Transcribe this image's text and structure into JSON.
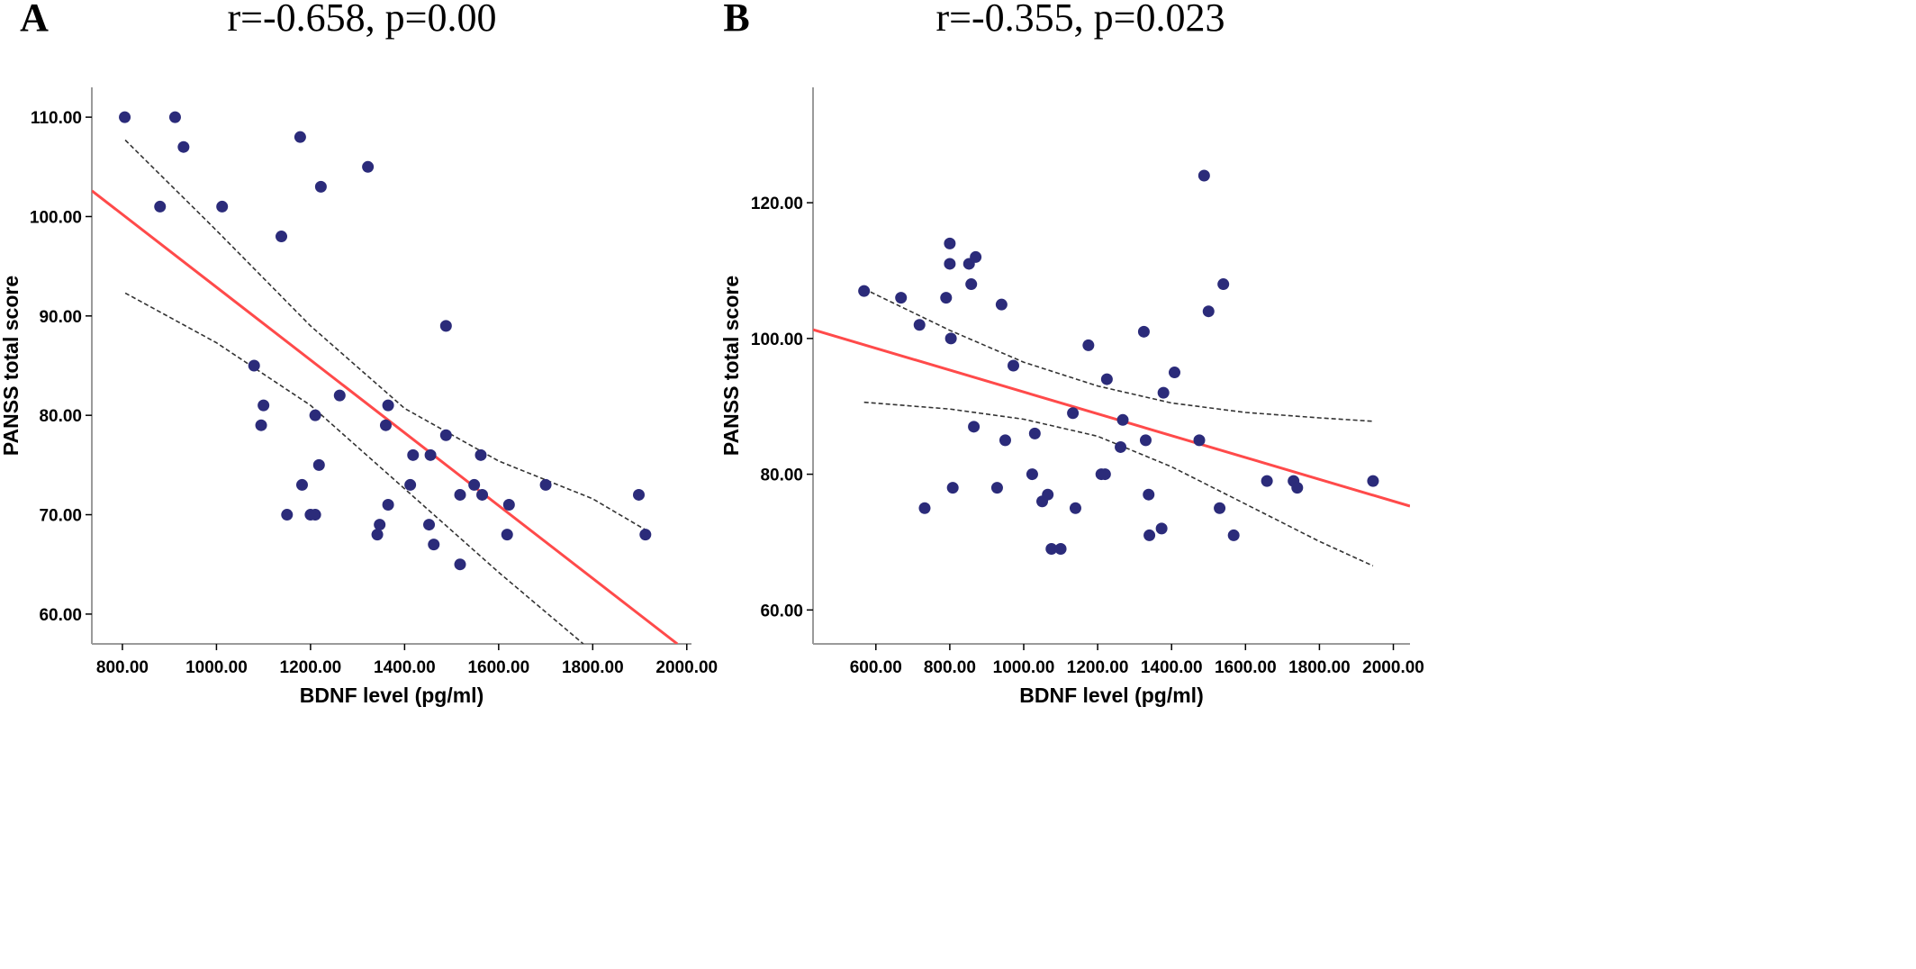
{
  "chart_data": [
    {
      "type": "scatter",
      "panel_label": "A",
      "title": "r=-0.658, p=0.00",
      "xlabel": "BDNF level (pg/ml)",
      "ylabel": "PANSS total score",
      "xlim": [
        735,
        2010
      ],
      "ylim": [
        57,
        113
      ],
      "x_ticks": [
        800,
        1000,
        1200,
        1400,
        1600,
        1800,
        2000
      ],
      "x_tick_labels": [
        "800.00",
        "1000.00",
        "1200.00",
        "1400.00",
        "1600.00",
        "1800.00",
        "2000.00"
      ],
      "y_ticks": [
        60,
        70,
        80,
        90,
        100,
        110
      ],
      "y_tick_labels": [
        "60.00",
        "70.00",
        "80.00",
        "90.00",
        "100.00",
        "110.00"
      ],
      "points": [
        [
          805,
          110
        ],
        [
          912,
          110
        ],
        [
          930,
          107
        ],
        [
          880,
          101
        ],
        [
          1012,
          101
        ],
        [
          1178,
          108
        ],
        [
          1222,
          103
        ],
        [
          1322,
          105
        ],
        [
          1138,
          98
        ],
        [
          1488,
          89
        ],
        [
          1080,
          85
        ],
        [
          1100,
          81
        ],
        [
          1095,
          79
        ],
        [
          1262,
          82
        ],
        [
          1210,
          80
        ],
        [
          1365,
          81
        ],
        [
          1360,
          79
        ],
        [
          1218,
          75
        ],
        [
          1182,
          73
        ],
        [
          1150,
          70
        ],
        [
          1200,
          70
        ],
        [
          1210,
          70
        ],
        [
          1418,
          76
        ],
        [
          1455,
          76
        ],
        [
          1488,
          78
        ],
        [
          1412,
          73
        ],
        [
          1365,
          71
        ],
        [
          1347,
          69
        ],
        [
          1342,
          68
        ],
        [
          1452,
          69
        ],
        [
          1462,
          67
        ],
        [
          1518,
          65
        ],
        [
          1518,
          72
        ],
        [
          1548,
          73
        ],
        [
          1565,
          72
        ],
        [
          1562,
          76
        ],
        [
          1622,
          71
        ],
        [
          1618,
          68
        ],
        [
          1700,
          73
        ],
        [
          1898,
          72
        ],
        [
          1912,
          68
        ]
      ],
      "fit": {
        "x": [
          735,
          1980
        ],
        "y": [
          102.6,
          57
        ]
      },
      "ci_upper": {
        "x": [
          806,
          1000,
          1200,
          1400,
          1600,
          1800,
          1915
        ],
        "y": [
          107.7,
          98.6,
          89.0,
          80.7,
          75.4,
          71.6,
          68.4
        ]
      },
      "ci_lower": {
        "x": [
          806,
          1000,
          1200,
          1400,
          1600,
          1780
        ],
        "y": [
          92.3,
          87.3,
          81.0,
          72.6,
          64.2,
          57
        ]
      }
    },
    {
      "type": "scatter",
      "panel_label": "B",
      "title": "r=-0.355, p=0.023",
      "xlabel": "BDNF level (pg/ml)",
      "ylabel": "PANSS total score",
      "xlim": [
        430,
        2045
      ],
      "ylim": [
        55,
        137
      ],
      "x_ticks": [
        600,
        800,
        1000,
        1200,
        1400,
        1600,
        1800,
        2000
      ],
      "x_tick_labels": [
        "600.00",
        "800.00",
        "1000.00",
        "1200.00",
        "1400.00",
        "1600.00",
        "1800.00",
        "2000.00"
      ],
      "y_ticks": [
        60,
        80,
        100,
        120
      ],
      "y_tick_labels": [
        "60.00",
        "80.00",
        "100.00",
        "120.00"
      ],
      "points": [
        [
          568,
          107
        ],
        [
          668,
          106
        ],
        [
          718,
          102
        ],
        [
          790,
          106
        ],
        [
          800,
          114
        ],
        [
          800,
          111
        ],
        [
          803,
          100
        ],
        [
          808,
          78
        ],
        [
          852,
          111
        ],
        [
          858,
          108
        ],
        [
          870,
          112
        ],
        [
          865,
          87
        ],
        [
          732,
          75
        ],
        [
          928,
          78
        ],
        [
          940,
          105
        ],
        [
          950,
          85
        ],
        [
          972,
          96
        ],
        [
          1023,
          80
        ],
        [
          1030,
          86
        ],
        [
          1050,
          76
        ],
        [
          1065,
          77
        ],
        [
          1075,
          69
        ],
        [
          1100,
          69
        ],
        [
          1133,
          89
        ],
        [
          1140,
          75
        ],
        [
          1175,
          99
        ],
        [
          1210,
          80
        ],
        [
          1220,
          80
        ],
        [
          1225,
          94
        ],
        [
          1262,
          84
        ],
        [
          1268,
          88
        ],
        [
          1325,
          101
        ],
        [
          1330,
          85
        ],
        [
          1338,
          77
        ],
        [
          1340,
          71
        ],
        [
          1373,
          72
        ],
        [
          1378,
          92
        ],
        [
          1408,
          95
        ],
        [
          1475,
          85
        ],
        [
          1488,
          124
        ],
        [
          1500,
          104
        ],
        [
          1540,
          108
        ],
        [
          1530,
          75
        ],
        [
          1568,
          71
        ],
        [
          1658,
          79
        ],
        [
          1730,
          79
        ],
        [
          1740,
          78
        ],
        [
          1945,
          79
        ]
      ],
      "fit": {
        "x": [
          430,
          2045
        ],
        "y": [
          101.3,
          75.3
        ]
      },
      "ci_upper": {
        "x": [
          568,
          800,
          1000,
          1200,
          1400,
          1600,
          1800,
          1945
        ],
        "y": [
          107.3,
          101.2,
          96.5,
          93.0,
          90.5,
          89.1,
          88.3,
          87.8
        ]
      },
      "ci_lower": {
        "x": [
          568,
          800,
          1000,
          1200,
          1400,
          1600,
          1800,
          1945
        ],
        "y": [
          90.6,
          89.6,
          88.1,
          85.6,
          81.1,
          75.6,
          70.1,
          66.5
        ]
      }
    }
  ]
}
